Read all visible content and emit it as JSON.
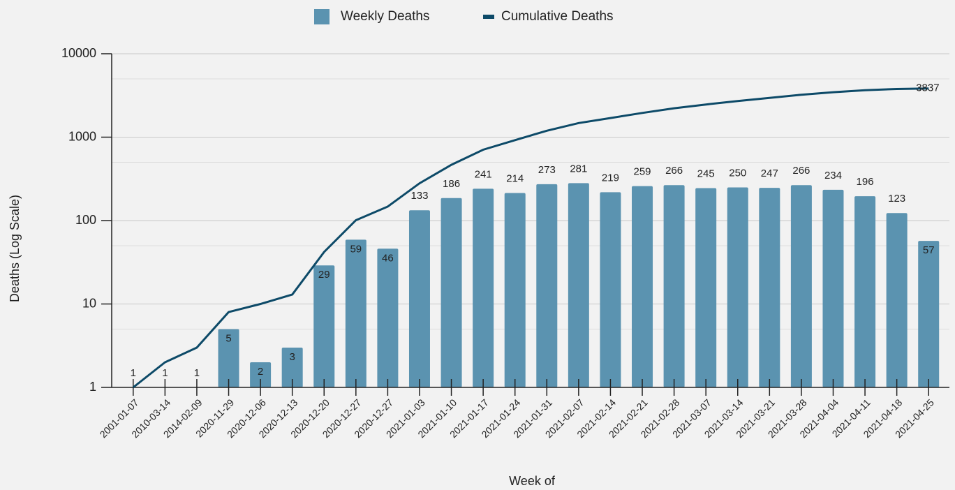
{
  "chart_data": {
    "type": "bar_line",
    "x_label": "Week of",
    "y_label": "Deaths (Log Scale)",
    "categories": [
      "2001-01-07",
      "2010-03-14",
      "2014-02-09",
      "2020-11-29",
      "2020-12-06",
      "2020-12-13",
      "2020-12-20",
      "2020-12-27",
      "2020-12-27",
      "2021-01-03",
      "2021-01-10",
      "2021-01-17",
      "2021-01-24",
      "2021-01-31",
      "2021-02-07",
      "2021-02-14",
      "2021-02-21",
      "2021-02-28",
      "2021-03-07",
      "2021-03-14",
      "2021-03-21",
      "2021-03-28",
      "2021-04-04",
      "2021-04-11",
      "2021-04-18",
      "2021-04-25"
    ],
    "series": [
      {
        "name": "Weekly Deaths",
        "type": "bar",
        "color": "#5b93b0",
        "label_color": "#5b93b0",
        "values": [
          1,
          1,
          1,
          5,
          2,
          3,
          29,
          59,
          46,
          133,
          186,
          241,
          214,
          273,
          281,
          219,
          259,
          266,
          245,
          250,
          247,
          266,
          234,
          196,
          123,
          57
        ]
      },
      {
        "name": "Cumulative Deaths",
        "type": "line",
        "color": "#0d4a68",
        "values": [
          1,
          2,
          3,
          8,
          10,
          13,
          42,
          101,
          147,
          280,
          466,
          707,
          921,
          1194,
          1475,
          1694,
          1953,
          2219,
          2464,
          2714,
          2961,
          3227,
          3461,
          3657,
          3780,
          3837
        ],
        "end_label": "3837"
      }
    ],
    "log_scale": true,
    "ylim": [
      1,
      10000
    ],
    "yticks": [
      1,
      10,
      100,
      1000,
      10000
    ],
    "minor_grid": [
      5,
      50,
      500,
      5000
    ],
    "grid": true,
    "legend": "top"
  }
}
